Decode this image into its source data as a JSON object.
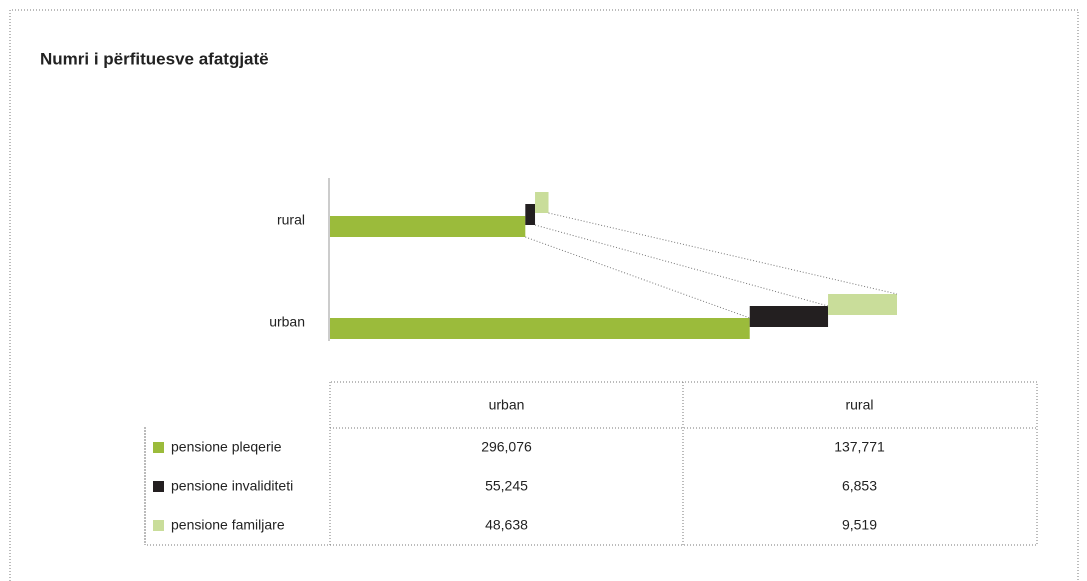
{
  "chart_data": {
    "type": "bar",
    "title": "Numri i përfituesve afatgjatë",
    "categories": [
      "urban",
      "rural"
    ],
    "series": [
      {
        "name": "pensione pleqerie",
        "color": "#9bbb3b",
        "values": [
          296076,
          137771
        ],
        "value_labels": [
          "296,076",
          "137,771"
        ]
      },
      {
        "name": "pensione invaliditeti",
        "color": "#231f20",
        "values": [
          55245,
          6853
        ],
        "value_labels": [
          "55,245",
          "6,853"
        ]
      },
      {
        "name": "pensione familjare",
        "color": "#c9dd9a",
        "values": [
          48638,
          9519
        ],
        "value_labels": [
          "48,638",
          "9,519"
        ]
      }
    ]
  }
}
